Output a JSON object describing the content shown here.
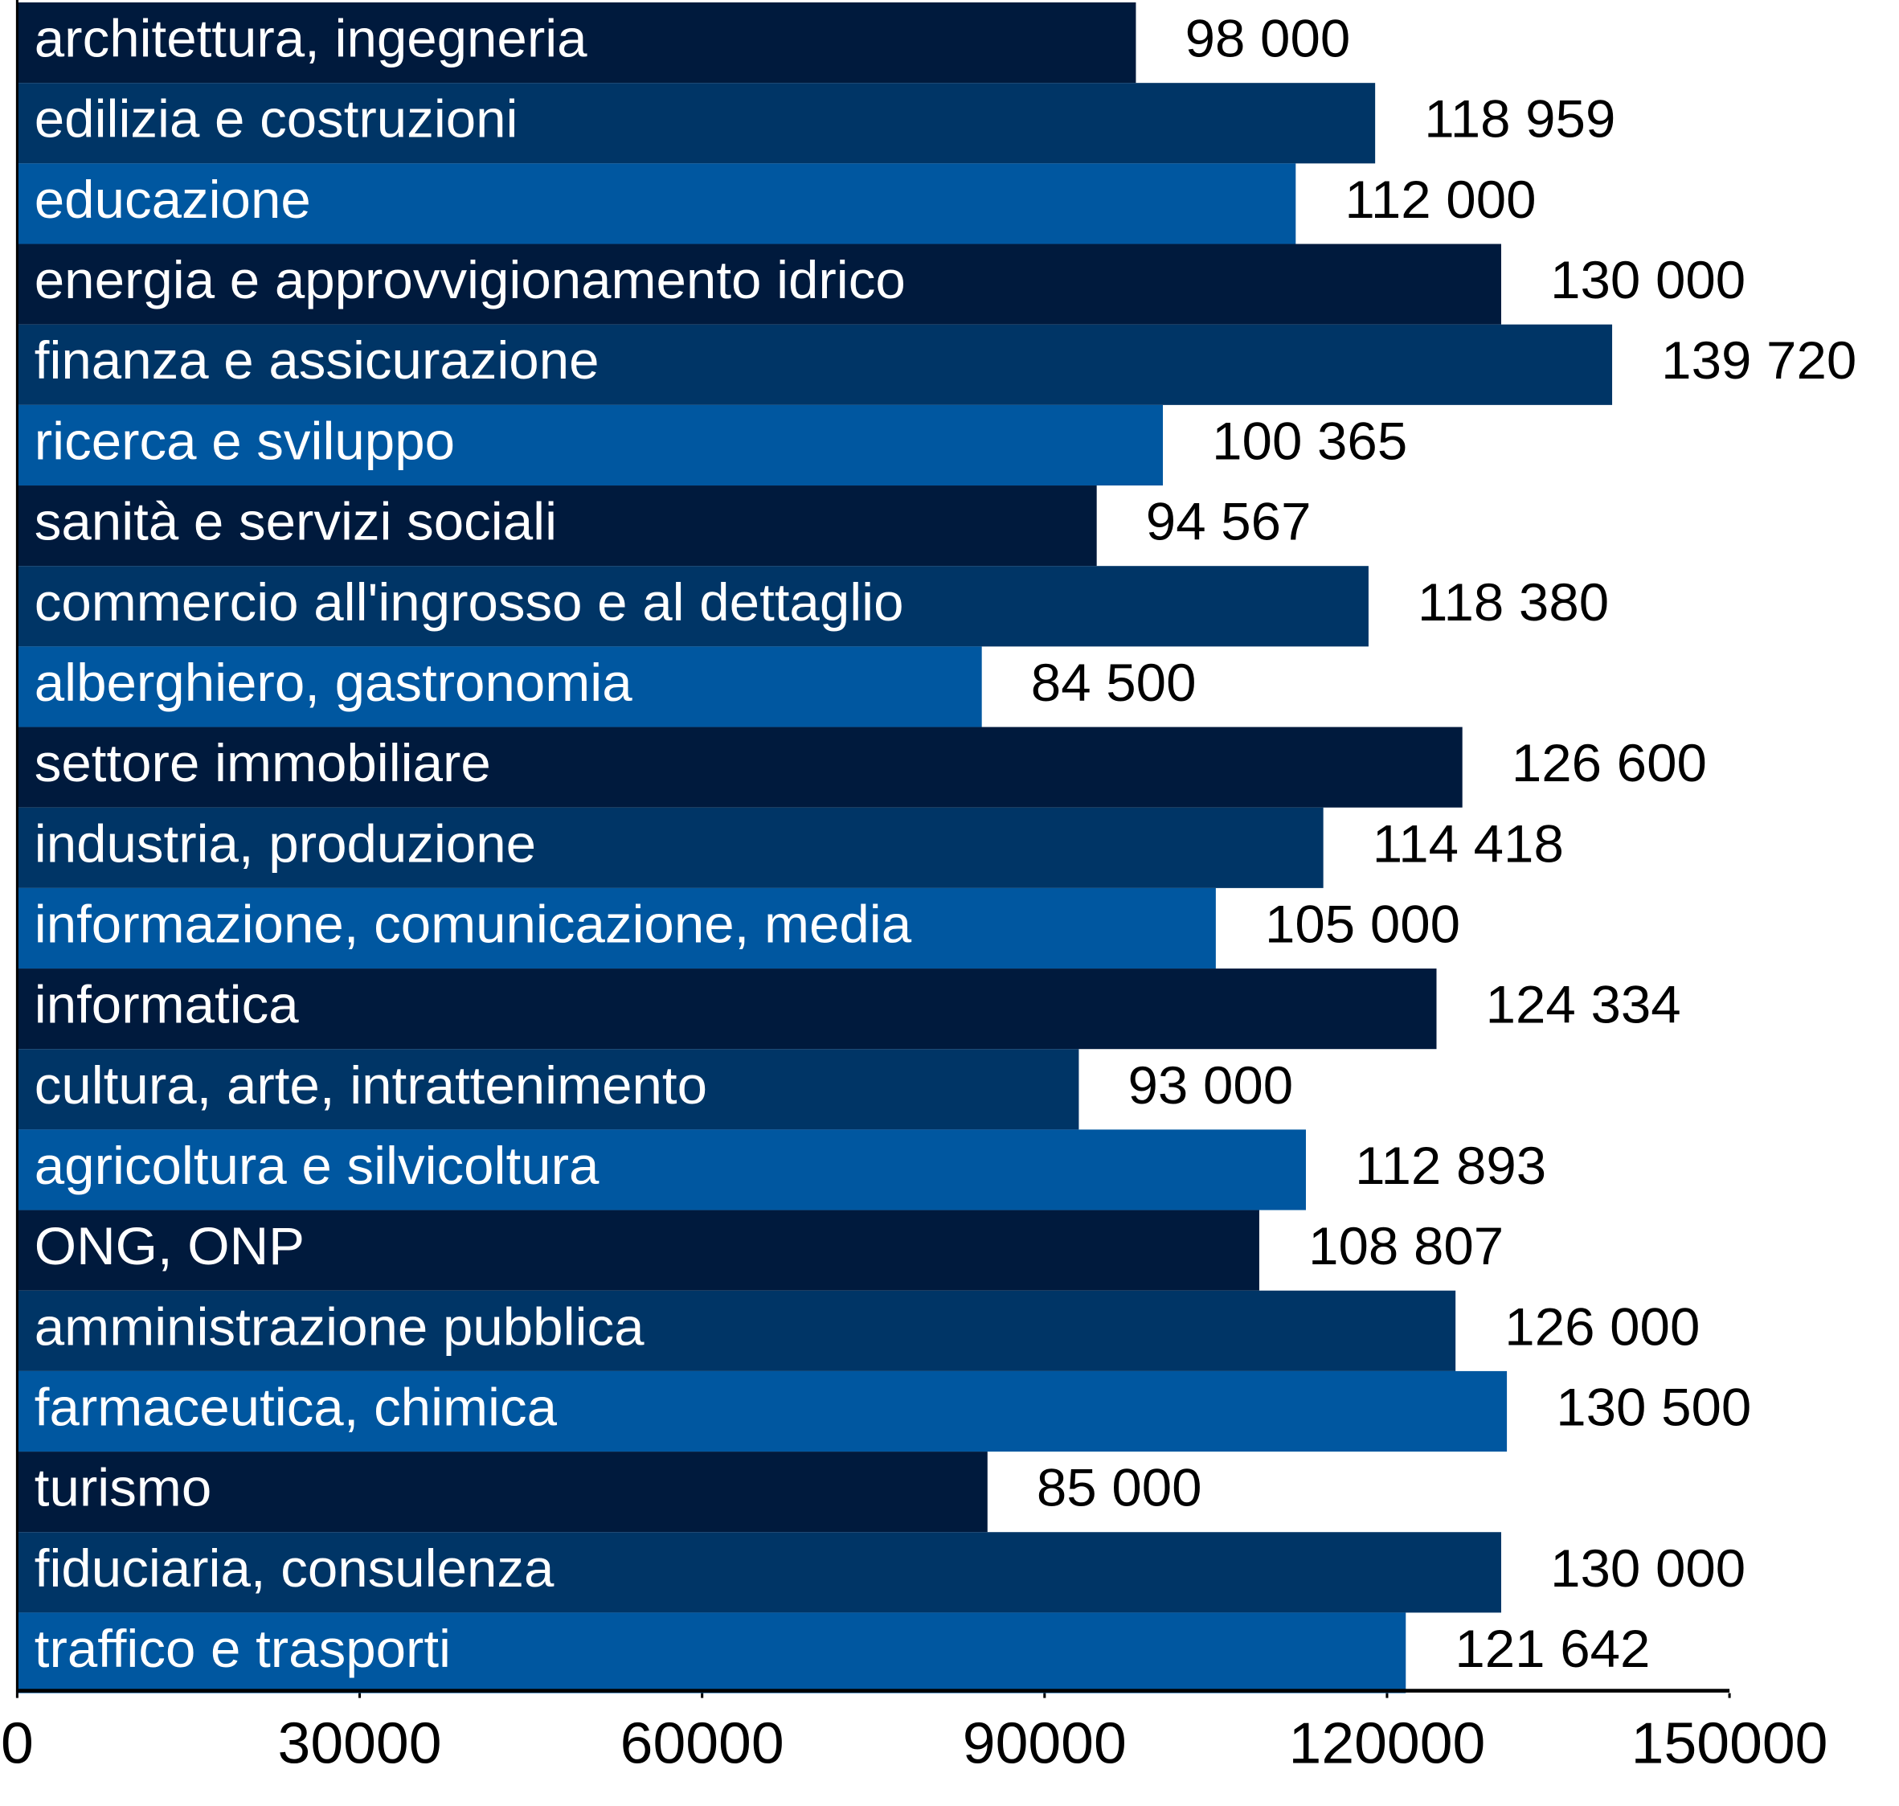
{
  "chart_data": {
    "type": "bar",
    "orientation": "horizontal",
    "categories": [
      "architettura, ingegneria",
      "edilizia e costruzioni",
      "educazione",
      "energia e approvvigionamento idrico",
      "finanza e assicurazione",
      "ricerca e sviluppo",
      "sanità e servizi sociali",
      "commercio all'ingrosso e al dettaglio",
      "alberghiero, gastronomia",
      "settore immobiliare",
      "industria, produzione",
      "informazione, comunicazione, media",
      "informatica",
      "cultura, arte, intrattenimento",
      "agricoltura e silvicoltura",
      "ONG, ONP",
      "amministrazione pubblica",
      "farmaceutica, chimica",
      "turismo",
      "fiduciaria, consulenza",
      "traffico e trasporti"
    ],
    "values": [
      98000,
      118959,
      112000,
      130000,
      139720,
      100365,
      94567,
      118380,
      84500,
      126600,
      114418,
      105000,
      124334,
      93000,
      112893,
      108807,
      126000,
      130500,
      85000,
      130000,
      121642
    ],
    "value_labels": [
      "98 000",
      "118 959",
      "112 000",
      "130 000",
      "139 720",
      "100 365",
      "94 567",
      "118 380",
      "84 500",
      "126 600",
      "114 418",
      "105 000",
      "124 334",
      "93 000",
      "112 893",
      "108 807",
      "126 000",
      "130 500",
      "85 000",
      "130 000",
      "121 642"
    ],
    "colors": [
      "#001a3d",
      "#003566",
      "#0057a0"
    ],
    "xlim": [
      0,
      150000
    ],
    "xticks": [
      0,
      30000,
      60000,
      90000,
      120000,
      150000
    ]
  }
}
